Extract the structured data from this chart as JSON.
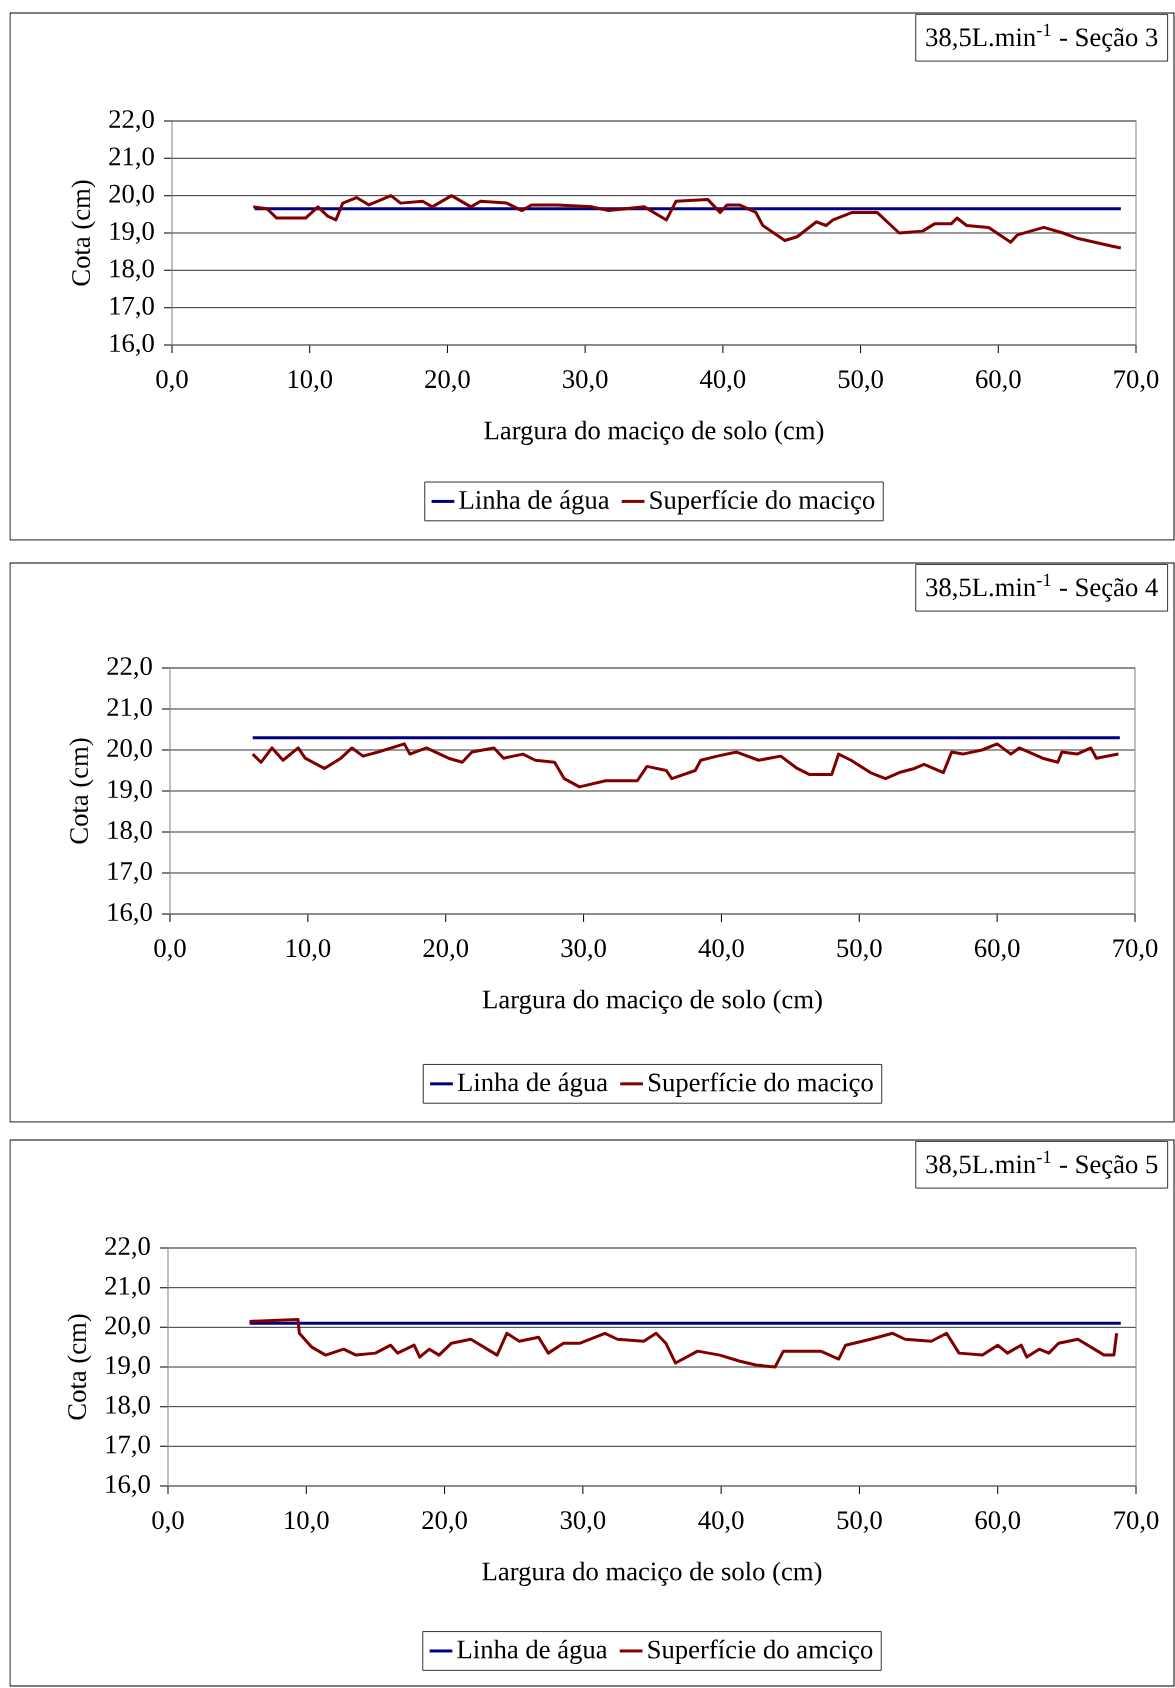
{
  "chart_data": [
    {
      "type": "line",
      "title": "38,5L.min$^{-1}$ - Seção 3",
      "xlabel": "Largura do maciço de solo (cm)",
      "ylabel": "Cota (cm)",
      "xlim": [
        0,
        70
      ],
      "xticks": [
        {
          "value": 0,
          "label": "0,0"
        },
        {
          "value": 10,
          "label": "10,0"
        },
        {
          "value": 20,
          "label": "20,0"
        },
        {
          "value": 30,
          "label": "30,0"
        },
        {
          "value": 40,
          "label": "40,0"
        },
        {
          "value": 50,
          "label": "50,0"
        },
        {
          "value": 60,
          "label": "60,0"
        },
        {
          "value": 70,
          "label": "70,0"
        }
      ],
      "ylim": [
        16,
        22
      ],
      "yticks": [
        {
          "value": 16,
          "label": "16,0"
        },
        {
          "value": 17,
          "label": "17,0"
        },
        {
          "value": 18,
          "label": "18,0"
        },
        {
          "value": 19,
          "label": "19,0"
        },
        {
          "value": 20,
          "label": "20,0"
        },
        {
          "value": 21,
          "label": "21,0"
        },
        {
          "value": 22,
          "label": "22,0"
        }
      ],
      "grid": "y",
      "legend": "bottom",
      "series": [
        {
          "name": "Linha de água",
          "color": "#000080",
          "x": [
            6.0,
            68.9
          ],
          "values": [
            19.65,
            19.65
          ]
        },
        {
          "name": "Superfície do maciço",
          "color": "#800000",
          "x": [
            5.9,
            6.9,
            7.6,
            9.7,
            10.6,
            11.3,
            11.9,
            12.4,
            13.4,
            14.3,
            15.9,
            16.6,
            18.2,
            18.9,
            20.3,
            21.7,
            22.4,
            24.3,
            25.4,
            26.1,
            28.0,
            30.5,
            31.7,
            34.3,
            35.9,
            36.6,
            38.9,
            39.8,
            40.3,
            41.2,
            42.4,
            42.9,
            44.5,
            45.4,
            46.8,
            47.5,
            48.0,
            49.4,
            51.2,
            52.8,
            54.5,
            55.4,
            56.6,
            57.0,
            57.7,
            59.3,
            60.9,
            61.4,
            63.3,
            64.7,
            65.8,
            68.2,
            68.9
          ],
          "values": [
            19.7,
            19.65,
            19.4,
            19.4,
            19.7,
            19.45,
            19.35,
            19.8,
            19.95,
            19.75,
            20.0,
            19.8,
            19.85,
            19.7,
            20.0,
            19.7,
            19.85,
            19.8,
            19.6,
            19.75,
            19.75,
            19.7,
            19.6,
            19.7,
            19.35,
            19.85,
            19.9,
            19.55,
            19.75,
            19.75,
            19.55,
            19.2,
            18.8,
            18.9,
            19.3,
            19.2,
            19.35,
            19.55,
            19.55,
            19.0,
            19.05,
            19.25,
            19.25,
            19.4,
            19.2,
            19.15,
            18.75,
            18.95,
            19.15,
            19.0,
            18.85,
            18.65,
            18.6
          ]
        }
      ]
    },
    {
      "type": "line",
      "title": "38,5L.min$^{-1}$ - Seção 4",
      "xlabel": "Largura do maciço de solo (cm)",
      "ylabel": "Cota (cm)",
      "xlim": [
        0,
        70
      ],
      "xticks": [
        {
          "value": 0,
          "label": "0,0"
        },
        {
          "value": 10,
          "label": "10,0"
        },
        {
          "value": 20,
          "label": "20,0"
        },
        {
          "value": 30,
          "label": "30,0"
        },
        {
          "value": 40,
          "label": "40,0"
        },
        {
          "value": 50,
          "label": "50,0"
        },
        {
          "value": 60,
          "label": "60,0"
        },
        {
          "value": 70,
          "label": "70,0"
        }
      ],
      "ylim": [
        16,
        22
      ],
      "yticks": [
        {
          "value": 16,
          "label": "16,0"
        },
        {
          "value": 17,
          "label": "17,0"
        },
        {
          "value": 18,
          "label": "18,0"
        },
        {
          "value": 19,
          "label": "19,0"
        },
        {
          "value": 20,
          "label": "20,0"
        },
        {
          "value": 21,
          "label": "21,0"
        },
        {
          "value": 22,
          "label": "22,0"
        }
      ],
      "grid": "y",
      "legend": "bottom",
      "series": [
        {
          "name": "Linha de água",
          "color": "#000080",
          "x": [
            6.0,
            68.9
          ],
          "values": [
            20.3,
            20.3
          ]
        },
        {
          "name": "Superfície do maciço",
          "color": "#800000",
          "x": [
            6.0,
            6.6,
            7.4,
            8.2,
            9.3,
            9.8,
            11.2,
            12.4,
            13.2,
            14.0,
            15.1,
            17.0,
            17.4,
            18.6,
            20.2,
            21.2,
            21.9,
            23.5,
            24.2,
            25.6,
            26.5,
            27.9,
            28.6,
            29.7,
            31.6,
            33.9,
            34.6,
            36.0,
            36.4,
            38.1,
            38.5,
            39.7,
            41.1,
            42.7,
            44.3,
            45.5,
            46.4,
            48.0,
            48.5,
            49.4,
            50.8,
            51.9,
            52.9,
            54.0,
            54.7,
            56.1,
            56.7,
            57.5,
            58.9,
            60.0,
            61.0,
            61.6,
            63.3,
            64.4,
            64.7,
            65.8,
            66.8,
            67.2,
            68.8
          ],
          "values": [
            19.9,
            19.7,
            20.05,
            19.75,
            20.05,
            19.8,
            19.55,
            19.8,
            20.05,
            19.85,
            19.95,
            20.15,
            19.9,
            20.05,
            19.8,
            19.7,
            19.95,
            20.05,
            19.8,
            19.9,
            19.75,
            19.7,
            19.3,
            19.1,
            19.25,
            19.25,
            19.6,
            19.5,
            19.3,
            19.5,
            19.75,
            19.85,
            19.95,
            19.75,
            19.85,
            19.55,
            19.4,
            19.4,
            19.9,
            19.75,
            19.45,
            19.3,
            19.45,
            19.55,
            19.65,
            19.45,
            19.95,
            19.9,
            20.0,
            20.15,
            19.9,
            20.05,
            19.8,
            19.7,
            19.95,
            19.9,
            20.05,
            19.8,
            19.9
          ]
        }
      ]
    },
    {
      "type": "line",
      "title": "38,5L.min$^{-1}$ - Seção 5",
      "xlabel": "Largura do maciço de solo (cm)",
      "ylabel": "Cota (cm)",
      "xlim": [
        0,
        70
      ],
      "xticks": [
        {
          "value": 0,
          "label": "0,0"
        },
        {
          "value": 10,
          "label": "10,0"
        },
        {
          "value": 20,
          "label": "20,0"
        },
        {
          "value": 30,
          "label": "30,0"
        },
        {
          "value": 40,
          "label": "40,0"
        },
        {
          "value": 50,
          "label": "50,0"
        },
        {
          "value": 60,
          "label": "60,0"
        },
        {
          "value": 70,
          "label": "70,0"
        }
      ],
      "ylim": [
        16,
        22
      ],
      "yticks": [
        {
          "value": 16,
          "label": "16,0"
        },
        {
          "value": 17,
          "label": "17,0"
        },
        {
          "value": 18,
          "label": "18,0"
        },
        {
          "value": 19,
          "label": "19,0"
        },
        {
          "value": 20,
          "label": "20,0"
        },
        {
          "value": 21,
          "label": "21,0"
        },
        {
          "value": 22,
          "label": "22,0"
        }
      ],
      "grid": "y",
      "legend": "bottom",
      "series": [
        {
          "name": "Linha de água",
          "color": "#000080",
          "x": [
            5.9,
            68.9
          ],
          "values": [
            20.1,
            20.1
          ]
        },
        {
          "name": "Superfície do amciço",
          "color": "#800000",
          "x": [
            5.9,
            9.4,
            9.5,
            10.4,
            11.4,
            12.7,
            13.6,
            15.0,
            16.1,
            16.6,
            17.8,
            18.2,
            18.9,
            19.6,
            20.5,
            21.9,
            23.8,
            24.5,
            25.4,
            26.8,
            27.5,
            28.6,
            29.8,
            31.6,
            32.5,
            34.4,
            35.3,
            36.0,
            36.7,
            38.3,
            39.9,
            41.3,
            42.5,
            43.9,
            44.5,
            46.0,
            47.2,
            48.5,
            49.0,
            50.8,
            52.4,
            53.3,
            55.2,
            56.3,
            57.2,
            58.9,
            60.0,
            60.7,
            61.7,
            62.1,
            63.0,
            63.7,
            64.4,
            65.8,
            67.7,
            68.4,
            68.6
          ],
          "values": [
            20.15,
            20.2,
            19.85,
            19.5,
            19.3,
            19.45,
            19.3,
            19.35,
            19.55,
            19.35,
            19.55,
            19.25,
            19.45,
            19.3,
            19.6,
            19.7,
            19.3,
            19.85,
            19.65,
            19.75,
            19.35,
            19.6,
            19.6,
            19.85,
            19.7,
            19.65,
            19.85,
            19.6,
            19.1,
            19.4,
            19.3,
            19.15,
            19.05,
            19.0,
            19.4,
            19.4,
            19.4,
            19.2,
            19.55,
            19.7,
            19.85,
            19.7,
            19.65,
            19.85,
            19.35,
            19.3,
            19.55,
            19.35,
            19.55,
            19.25,
            19.45,
            19.35,
            19.6,
            19.7,
            19.3,
            19.3,
            19.85
          ]
        }
      ]
    }
  ]
}
